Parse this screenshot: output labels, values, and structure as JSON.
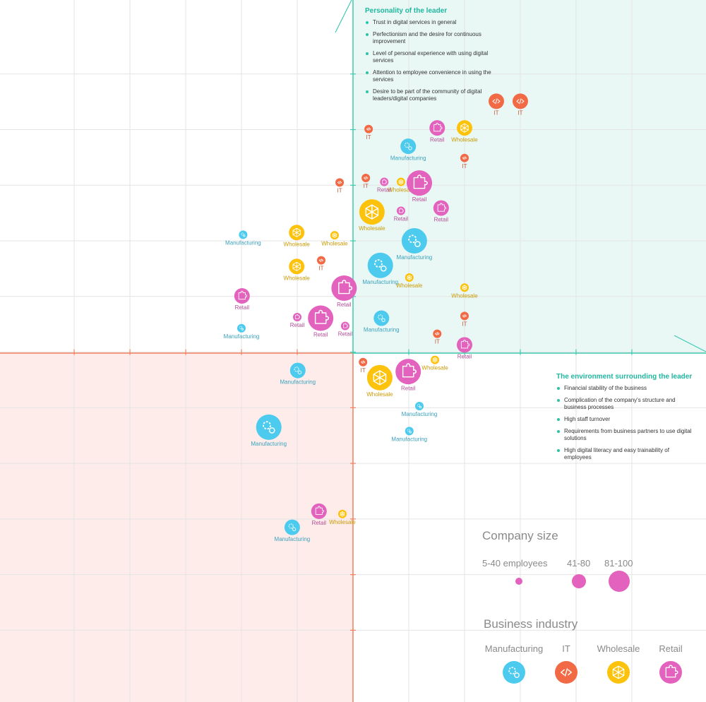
{
  "chart_data": {
    "type": "bubble",
    "xlim": [
      -6.33,
      6.33
    ],
    "ylim": [
      -6.29,
      6.33
    ],
    "xticks": [
      -5,
      -4,
      -3,
      -2,
      -1,
      0,
      1,
      2,
      3,
      4,
      5
    ],
    "yticks": [
      -5,
      -4,
      -3,
      -2,
      -1,
      0,
      1,
      2,
      3,
      4,
      5
    ],
    "grid": true,
    "size_classes": [
      "5-40 employees",
      "41-80",
      "81-100"
    ],
    "size_legend_title": "Company size",
    "industry_legend_title": "Business industry",
    "annotations": [
      {
        "title": "Personality of the leader",
        "items": [
          "Trust in digital services in general",
          "Perfectionism and the desire for continuous improvement",
          "Level of personal experience with using digital services",
          "Attention to employee convenience in using the services",
          "Desire to be part of the community of digital leaders/digital companies"
        ]
      },
      {
        "title": "The environment surrounding the leader",
        "items": [
          "Financial stability of the business",
          "Complication of the company's structure and business processes",
          "High staff turnover",
          "Requirements from business partners to use digital solutions",
          "High digital literacy and easy trainability of employees"
        ]
      }
    ],
    "series": [
      {
        "name": "Manufacturing",
        "color": "#4ccbef",
        "x": [
          0.99,
          -1.97,
          1.1,
          0.49,
          -2.0,
          0.51,
          -0.99,
          1.19,
          1.01,
          -1.51,
          -1.09
        ],
        "y": [
          3.7,
          2.11,
          2.0,
          1.56,
          0.43,
          0.61,
          -0.33,
          -0.97,
          -1.42,
          -1.35,
          -3.15
        ],
        "size": [
          1,
          0,
          2,
          2,
          0,
          1,
          1,
          0,
          0,
          2,
          1
        ]
      },
      {
        "name": "IT",
        "color": "#f26a45",
        "x": [
          2.57,
          3.0,
          0.28,
          2.0,
          0.23,
          -0.24,
          -0.57,
          2.0,
          1.51,
          0.18
        ],
        "y": [
          4.51,
          4.51,
          4.01,
          3.49,
          3.13,
          3.05,
          1.65,
          0.65,
          0.33,
          -0.18
        ],
        "size": [
          1,
          1,
          0,
          0,
          0,
          0,
          0,
          0,
          0,
          0
        ]
      },
      {
        "name": "Wholesale",
        "color": "#fdc20c",
        "x": [
          2.0,
          0.86,
          0.34,
          -1.01,
          -0.33,
          -1.01,
          1.01,
          2.0,
          1.47,
          0.48,
          -0.19
        ],
        "y": [
          4.03,
          3.06,
          2.52,
          2.15,
          2.1,
          1.54,
          1.34,
          1.16,
          -0.14,
          -0.46,
          -2.91
        ],
        "size": [
          1,
          0,
          2,
          1,
          0,
          1,
          0,
          0,
          0,
          2,
          0
        ]
      },
      {
        "name": "Retail",
        "color": "#e262bd",
        "x": [
          1.51,
          0.56,
          1.19,
          1.58,
          0.86,
          -1.99,
          -0.16,
          -1.0,
          -0.58,
          -0.14,
          2.0,
          0.99,
          -0.61
        ],
        "y": [
          4.03,
          3.06,
          3.04,
          2.59,
          2.54,
          1.01,
          1.15,
          0.63,
          0.61,
          0.47,
          0.13,
          -0.35,
          -2.86
        ],
        "size": [
          1,
          0,
          2,
          1,
          0,
          1,
          2,
          0,
          2,
          0,
          1,
          2,
          1
        ]
      }
    ]
  }
}
